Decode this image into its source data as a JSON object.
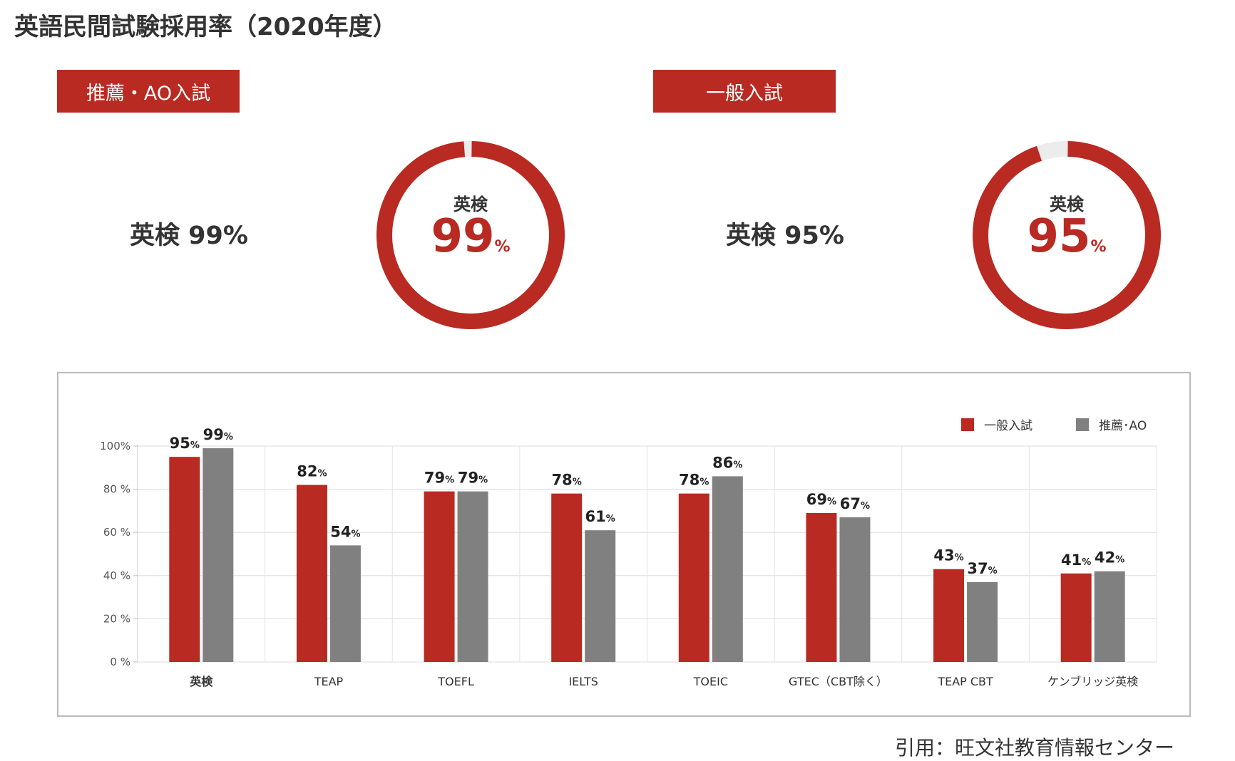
{
  "title": "英語民間試験採用率（2020年度）",
  "colors": {
    "general": "#b82a22",
    "ao": "#808080",
    "ring_bg": "#ececec"
  },
  "panels": [
    {
      "tag": "推薦・AO入試",
      "label": "英検 99%",
      "donut_name": "英検",
      "donut_value": "99",
      "donut_unit": "%",
      "percent": 99
    },
    {
      "tag": "一般入試",
      "label": "英検 95%",
      "donut_name": "英検",
      "donut_value": "95",
      "donut_unit": "%",
      "percent": 95
    }
  ],
  "chart_data": {
    "type": "bar",
    "categories": [
      "英検",
      "TEAP",
      "TOEFL",
      "IELTS",
      "TOEIC",
      "GTEC（CBT除く）",
      "TEAP CBT",
      "ケンブリッジ英検"
    ],
    "series": [
      {
        "name": "一般入試",
        "values": [
          95,
          82,
          79,
          78,
          78,
          69,
          43,
          41
        ]
      },
      {
        "name": "推薦･AO",
        "values": [
          99,
          54,
          79,
          61,
          86,
          67,
          37,
          42
        ]
      }
    ],
    "value_unit": "%",
    "ylim": [
      0,
      100
    ],
    "yticks": [
      0,
      20,
      40,
      60,
      80,
      100
    ],
    "ytick_labels": [
      "0 %",
      "20 %",
      "40 %",
      "60 %",
      "80 %",
      "100%"
    ],
    "grid": true,
    "legend_position": "top-right"
  },
  "source": "引用：旺文社教育情報センター"
}
